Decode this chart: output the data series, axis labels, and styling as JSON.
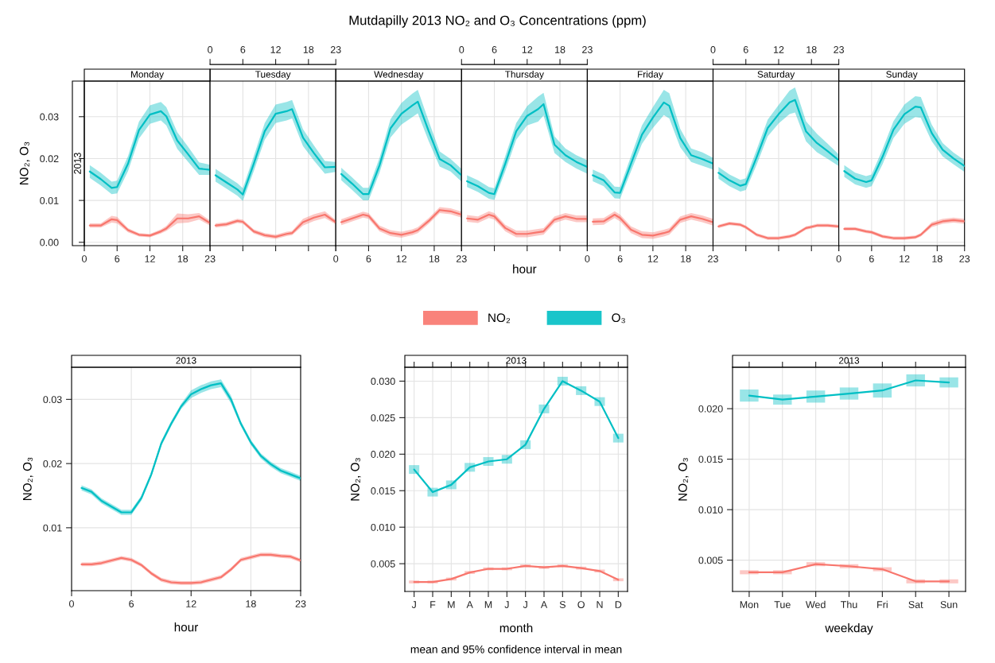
{
  "chart_data": [
    {
      "type": "line",
      "subtitle": "Monday",
      "ylabel": "NO₂, O₃",
      "annotations": [
        "2013"
      ],
      "x": [
        1,
        3,
        5,
        6,
        8,
        10,
        12,
        14,
        15,
        17,
        19,
        21,
        23
      ],
      "xlim": [
        0,
        23
      ],
      "xticks": [
        0,
        6,
        12,
        18,
        23
      ],
      "ylim": [
        -0.0008,
        0.0385
      ],
      "yticks": [
        {
          "value": 0,
          "label": "0.00"
        },
        0.01,
        0.02,
        0.03
      ],
      "grid": true,
      "series": [
        {
          "color": "#f8766d",
          "values": [
            0.004,
            0.004,
            0.0055,
            0.0053,
            0.0029,
            0.0018,
            0.0016,
            0.0026,
            0.0033,
            0.0057,
            0.0057,
            0.0062,
            0.0046
          ],
          "lower": [
            0.0035,
            0.0035,
            0.0047,
            0.0045,
            0.0024,
            0.0014,
            0.0012,
            0.0021,
            0.0027,
            0.0045,
            0.0047,
            0.0054,
            0.004
          ],
          "upper": [
            0.0045,
            0.0045,
            0.0063,
            0.0061,
            0.0034,
            0.0022,
            0.002,
            0.0031,
            0.0039,
            0.0069,
            0.0067,
            0.007,
            0.0052
          ]
        },
        {
          "color": "#00bfc4",
          "values": [
            0.0169,
            0.0151,
            0.013,
            0.0132,
            0.0188,
            0.0268,
            0.0305,
            0.0313,
            0.0301,
            0.0243,
            0.021,
            0.0176,
            0.0173
          ],
          "lower": [
            0.0154,
            0.0136,
            0.0115,
            0.0117,
            0.017,
            0.0248,
            0.0283,
            0.0291,
            0.0279,
            0.0223,
            0.0192,
            0.0161,
            0.0161
          ],
          "upper": [
            0.0184,
            0.0166,
            0.0145,
            0.0147,
            0.0206,
            0.0288,
            0.0327,
            0.0335,
            0.0323,
            0.0263,
            0.0228,
            0.0191,
            0.0185
          ]
        }
      ]
    },
    {
      "type": "line",
      "subtitle": "Tuesday",
      "x": [
        1,
        3,
        5,
        6,
        8,
        10,
        12,
        14,
        15,
        17,
        19,
        21,
        23
      ],
      "xlim": [
        0,
        23
      ],
      "xticks": [
        0,
        6,
        12,
        18,
        23
      ],
      "ylim": [
        -0.0008,
        0.0385
      ],
      "yticks": [
        {
          "value": 0,
          "label": null
        },
        {
          "value": 0.01,
          "label": null
        },
        {
          "value": 0.02,
          "label": null
        },
        {
          "value": 0.03,
          "label": null
        }
      ],
      "tick_labels": "x",
      "grid": true,
      "series": [
        {
          "color": "#f8766d",
          "values": [
            0.004,
            0.0043,
            0.0051,
            0.0049,
            0.0026,
            0.0017,
            0.0013,
            0.002,
            0.0022,
            0.0048,
            0.0059,
            0.0066,
            0.0048
          ],
          "lower": [
            0.0035,
            0.0038,
            0.0046,
            0.0044,
            0.0021,
            0.0012,
            0.0008,
            0.0015,
            0.0017,
            0.004,
            0.0051,
            0.0058,
            0.0043
          ],
          "upper": [
            0.0045,
            0.0048,
            0.0056,
            0.0054,
            0.0031,
            0.0022,
            0.0018,
            0.0025,
            0.0027,
            0.0056,
            0.0067,
            0.0074,
            0.0053
          ]
        },
        {
          "color": "#00bfc4",
          "values": [
            0.016,
            0.0143,
            0.0126,
            0.0114,
            0.0188,
            0.0265,
            0.0307,
            0.0313,
            0.0318,
            0.025,
            0.0213,
            0.0179,
            0.018
          ],
          "lower": [
            0.0145,
            0.0128,
            0.0111,
            0.0099,
            0.017,
            0.0245,
            0.0285,
            0.0291,
            0.0296,
            0.023,
            0.0195,
            0.0164,
            0.0168
          ],
          "upper": [
            0.0175,
            0.0158,
            0.0141,
            0.0129,
            0.0206,
            0.0285,
            0.0329,
            0.0335,
            0.034,
            0.027,
            0.0231,
            0.0194,
            0.0192
          ]
        }
      ]
    },
    {
      "type": "line",
      "subtitle": "Wednesday",
      "x": [
        1,
        3,
        5,
        6,
        8,
        10,
        12,
        14,
        15,
        17,
        19,
        21,
        23
      ],
      "xlim": [
        0,
        23
      ],
      "xticks": [
        0,
        6,
        12,
        18,
        23
      ],
      "ylim": [
        -0.0008,
        0.0385
      ],
      "yticks": [
        {
          "value": 0,
          "label": null
        },
        {
          "value": 0.01,
          "label": null
        },
        {
          "value": 0.02,
          "label": null
        },
        {
          "value": 0.03,
          "label": null
        }
      ],
      "tick_labels": "x",
      "grid": true,
      "series": [
        {
          "color": "#f8766d",
          "values": [
            0.0048,
            0.0057,
            0.0066,
            0.0063,
            0.0033,
            0.0022,
            0.0018,
            0.0024,
            0.0029,
            0.0051,
            0.0077,
            0.0074,
            0.0066
          ],
          "lower": [
            0.0041,
            0.005,
            0.0059,
            0.0056,
            0.0026,
            0.0015,
            0.0011,
            0.0017,
            0.0022,
            0.0044,
            0.007,
            0.0067,
            0.0059
          ],
          "upper": [
            0.0055,
            0.0064,
            0.0073,
            0.007,
            0.004,
            0.0029,
            0.0025,
            0.0031,
            0.0036,
            0.0058,
            0.0084,
            0.0081,
            0.0073
          ]
        },
        {
          "color": "#00bfc4",
          "values": [
            0.0163,
            0.014,
            0.0115,
            0.0115,
            0.0184,
            0.0272,
            0.0307,
            0.0327,
            0.0336,
            0.0265,
            0.0199,
            0.0184,
            0.016
          ],
          "lower": [
            0.0148,
            0.0125,
            0.01,
            0.01,
            0.0166,
            0.025,
            0.0281,
            0.0299,
            0.0308,
            0.0241,
            0.0181,
            0.0169,
            0.0145
          ],
          "upper": [
            0.0178,
            0.0155,
            0.013,
            0.013,
            0.0202,
            0.0294,
            0.0333,
            0.0355,
            0.0364,
            0.0289,
            0.0217,
            0.0199,
            0.0175
          ]
        }
      ]
    },
    {
      "type": "line",
      "subtitle": "Thursday",
      "xlabel": "hour",
      "annotations": [
        "Mutdapilly 2013 NO₂ and O₃ Concentrations (ppm)"
      ],
      "legend": "bottom",
      "x": [
        1,
        3,
        5,
        6,
        8,
        10,
        12,
        14,
        15,
        17,
        19,
        21,
        23
      ],
      "xlim": [
        0,
        23
      ],
      "xticks": [
        0,
        6,
        12,
        18,
        23
      ],
      "ylim": [
        -0.0008,
        0.0385
      ],
      "yticks": [
        {
          "value": 0,
          "label": null
        },
        {
          "value": 0.01,
          "label": null
        },
        {
          "value": 0.02,
          "label": null
        },
        {
          "value": 0.03,
          "label": null
        }
      ],
      "tick_labels": "x",
      "grid": true,
      "series": [
        {
          "name": "NO₂",
          "color": "#f8766d",
          "values": [
            0.0057,
            0.0054,
            0.0066,
            0.0062,
            0.0034,
            0.002,
            0.002,
            0.0024,
            0.0026,
            0.0054,
            0.0062,
            0.0056,
            0.0056
          ],
          "lower": [
            0.0049,
            0.0046,
            0.0058,
            0.0054,
            0.0026,
            0.0012,
            0.0012,
            0.0016,
            0.0018,
            0.0046,
            0.0054,
            0.0048,
            0.0048
          ],
          "upper": [
            0.0065,
            0.0062,
            0.0074,
            0.007,
            0.0042,
            0.0028,
            0.0028,
            0.0032,
            0.0034,
            0.0062,
            0.007,
            0.0064,
            0.0064
          ]
        },
        {
          "name": "O₃",
          "color": "#00bfc4",
          "values": [
            0.0146,
            0.0134,
            0.0118,
            0.0115,
            0.0188,
            0.0265,
            0.0302,
            0.0318,
            0.033,
            0.0233,
            0.0208,
            0.0192,
            0.018
          ],
          "lower": [
            0.0132,
            0.012,
            0.0104,
            0.0101,
            0.017,
            0.0245,
            0.0279,
            0.0288,
            0.0303,
            0.0213,
            0.0192,
            0.0176,
            0.0164
          ],
          "upper": [
            0.016,
            0.0148,
            0.0132,
            0.0129,
            0.0206,
            0.0285,
            0.0325,
            0.0348,
            0.0357,
            0.0253,
            0.0224,
            0.0208,
            0.0196
          ]
        }
      ]
    },
    {
      "type": "line",
      "subtitle": "Friday",
      "x": [
        1,
        3,
        5,
        6,
        8,
        10,
        12,
        14,
        15,
        17,
        19,
        21,
        23
      ],
      "xlim": [
        0,
        23
      ],
      "xticks": [
        0,
        6,
        12,
        18,
        23
      ],
      "ylim": [
        -0.0008,
        0.0385
      ],
      "yticks": [
        {
          "value": 0,
          "label": null
        },
        {
          "value": 0.01,
          "label": null
        },
        {
          "value": 0.02,
          "label": null
        },
        {
          "value": 0.03,
          "label": null
        }
      ],
      "tick_labels": "x",
      "grid": true,
      "series": [
        {
          "color": "#f8766d",
          "values": [
            0.0049,
            0.005,
            0.0066,
            0.0058,
            0.003,
            0.0018,
            0.0016,
            0.0022,
            0.0026,
            0.0054,
            0.0062,
            0.0056,
            0.0048
          ],
          "lower": [
            0.0041,
            0.0042,
            0.0058,
            0.005,
            0.0022,
            0.001,
            0.0008,
            0.0014,
            0.0018,
            0.0046,
            0.0054,
            0.0048,
            0.004
          ],
          "upper": [
            0.0057,
            0.0058,
            0.0074,
            0.0066,
            0.0038,
            0.0026,
            0.0024,
            0.003,
            0.0034,
            0.0062,
            0.007,
            0.0064,
            0.0056
          ]
        },
        {
          "color": "#00bfc4",
          "values": [
            0.016,
            0.0148,
            0.0119,
            0.0118,
            0.0188,
            0.0257,
            0.0298,
            0.0334,
            0.0326,
            0.0249,
            0.0208,
            0.0199,
            0.0188
          ],
          "lower": [
            0.0146,
            0.0134,
            0.0105,
            0.0104,
            0.017,
            0.0235,
            0.0273,
            0.0304,
            0.0296,
            0.0227,
            0.0192,
            0.0183,
            0.0174
          ],
          "upper": [
            0.0174,
            0.0162,
            0.0133,
            0.0132,
            0.0206,
            0.0279,
            0.0323,
            0.0364,
            0.0356,
            0.0271,
            0.0224,
            0.0215,
            0.0202
          ]
        }
      ]
    },
    {
      "type": "line",
      "subtitle": "Saturday",
      "x": [
        1,
        3,
        5,
        6,
        8,
        10,
        12,
        14,
        15,
        17,
        19,
        21,
        23
      ],
      "xlim": [
        0,
        23
      ],
      "xticks": [
        0,
        6,
        12,
        18,
        23
      ],
      "ylim": [
        -0.0008,
        0.0385
      ],
      "yticks": [
        {
          "value": 0,
          "label": null
        },
        {
          "value": 0.01,
          "label": null
        },
        {
          "value": 0.02,
          "label": null
        },
        {
          "value": 0.03,
          "label": null
        }
      ],
      "tick_labels": "x",
      "grid": true,
      "series": [
        {
          "color": "#f8766d",
          "values": [
            0.0038,
            0.0045,
            0.0042,
            0.0036,
            0.0018,
            0.001,
            0.001,
            0.0014,
            0.0018,
            0.0034,
            0.004,
            0.004,
            0.0038
          ],
          "lower": [
            0.0034,
            0.0041,
            0.0038,
            0.0032,
            0.0014,
            0.0006,
            0.0006,
            0.001,
            0.0014,
            0.003,
            0.0036,
            0.0036,
            0.0034
          ],
          "upper": [
            0.0042,
            0.0049,
            0.0046,
            0.004,
            0.0022,
            0.0014,
            0.0014,
            0.0018,
            0.0022,
            0.0038,
            0.0044,
            0.0044,
            0.0042
          ]
        },
        {
          "color": "#00bfc4",
          "values": [
            0.0166,
            0.0148,
            0.0135,
            0.0139,
            0.0204,
            0.0273,
            0.0306,
            0.0334,
            0.034,
            0.0265,
            0.0237,
            0.0217,
            0.0196
          ],
          "lower": [
            0.0152,
            0.0134,
            0.0121,
            0.0125,
            0.0186,
            0.0253,
            0.0284,
            0.0306,
            0.031,
            0.0241,
            0.0215,
            0.0199,
            0.0182
          ],
          "upper": [
            0.018,
            0.0162,
            0.0149,
            0.0153,
            0.0222,
            0.0293,
            0.0328,
            0.0362,
            0.037,
            0.0289,
            0.0259,
            0.0235,
            0.021
          ]
        }
      ]
    },
    {
      "type": "line",
      "subtitle": "Sunday",
      "x": [
        1,
        3,
        5,
        6,
        8,
        10,
        12,
        14,
        15,
        17,
        19,
        21,
        23
      ],
      "xlim": [
        0,
        23
      ],
      "xticks": [
        0,
        6,
        12,
        18,
        23
      ],
      "ylim": [
        -0.0008,
        0.0385
      ],
      "yticks": [
        {
          "value": 0,
          "label": null
        },
        {
          "value": 0.01,
          "label": null
        },
        {
          "value": 0.02,
          "label": null
        },
        {
          "value": 0.03,
          "label": null
        }
      ],
      "tick_labels": "x",
      "grid": true,
      "series": [
        {
          "color": "#f8766d",
          "values": [
            0.0032,
            0.0032,
            0.0026,
            0.0024,
            0.0014,
            0.001,
            0.001,
            0.0012,
            0.0018,
            0.0042,
            0.005,
            0.0053,
            0.005
          ],
          "lower": [
            0.0028,
            0.0028,
            0.0022,
            0.002,
            0.001,
            0.0006,
            0.0006,
            0.0008,
            0.0014,
            0.0036,
            0.0044,
            0.0047,
            0.0044
          ],
          "upper": [
            0.0036,
            0.0036,
            0.003,
            0.0028,
            0.0018,
            0.0014,
            0.0014,
            0.0016,
            0.0022,
            0.0048,
            0.0056,
            0.0059,
            0.0056
          ]
        },
        {
          "color": "#00bfc4",
          "values": [
            0.017,
            0.0152,
            0.0144,
            0.0148,
            0.0204,
            0.0269,
            0.0306,
            0.0324,
            0.0322,
            0.0261,
            0.0221,
            0.02,
            0.0182
          ],
          "lower": [
            0.0156,
            0.0138,
            0.013,
            0.0134,
            0.0186,
            0.0249,
            0.0283,
            0.0299,
            0.0297,
            0.0241,
            0.0205,
            0.0186,
            0.0168
          ],
          "upper": [
            0.0184,
            0.0166,
            0.0158,
            0.0162,
            0.0222,
            0.0289,
            0.0329,
            0.0349,
            0.0347,
            0.0281,
            0.0237,
            0.0214,
            0.0196
          ]
        }
      ]
    },
    {
      "type": "line",
      "subtitle": "2013",
      "xlabel": "hour",
      "ylabel": "NO₂, O₃",
      "x": [
        1,
        2,
        3,
        4,
        5,
        6,
        7,
        8,
        9,
        10,
        11,
        12,
        13,
        14,
        15,
        16,
        17,
        18,
        19,
        20,
        21,
        22,
        23
      ],
      "xlim": [
        0,
        23
      ],
      "xticks": [
        0,
        6,
        12,
        18,
        23
      ],
      "ylim": [
        0.0002,
        0.035
      ],
      "yticks": [
        0.01,
        0.02,
        0.03
      ],
      "grid": true,
      "series": [
        {
          "color": "#f8766d",
          "values": [
            0.0043,
            0.0043,
            0.0045,
            0.0049,
            0.0053,
            0.005,
            0.0042,
            0.0029,
            0.0019,
            0.0015,
            0.0014,
            0.0014,
            0.0015,
            0.0019,
            0.0023,
            0.0035,
            0.005,
            0.0054,
            0.0058,
            0.0058,
            0.0056,
            0.0055,
            0.0049
          ],
          "lower": [
            0.004,
            0.004,
            0.0042,
            0.0046,
            0.005,
            0.0047,
            0.0039,
            0.0026,
            0.0016,
            0.0012,
            0.0011,
            0.0011,
            0.0012,
            0.0016,
            0.002,
            0.0032,
            0.0047,
            0.0051,
            0.0055,
            0.0055,
            0.0053,
            0.0052,
            0.0046
          ],
          "upper": [
            0.0046,
            0.0046,
            0.0048,
            0.0052,
            0.0056,
            0.0053,
            0.0045,
            0.0032,
            0.0022,
            0.0018,
            0.0017,
            0.0017,
            0.0018,
            0.0022,
            0.0026,
            0.0038,
            0.0053,
            0.0057,
            0.0061,
            0.0061,
            0.0059,
            0.0058,
            0.0052
          ]
        },
        {
          "color": "#00bfc4",
          "values": [
            0.0162,
            0.0156,
            0.0142,
            0.0133,
            0.0124,
            0.0124,
            0.0146,
            0.0183,
            0.0231,
            0.0262,
            0.0289,
            0.0308,
            0.0316,
            0.0322,
            0.0325,
            0.03,
            0.0262,
            0.0233,
            0.0212,
            0.0199,
            0.0189,
            0.0183,
            0.0177
          ],
          "lower": [
            0.0158,
            0.0152,
            0.0138,
            0.0129,
            0.012,
            0.012,
            0.0142,
            0.0179,
            0.0227,
            0.0258,
            0.0285,
            0.0302,
            0.031,
            0.0316,
            0.0319,
            0.0294,
            0.0258,
            0.0229,
            0.0208,
            0.0195,
            0.0185,
            0.0179,
            0.0173
          ],
          "upper": [
            0.0166,
            0.016,
            0.0146,
            0.0137,
            0.0128,
            0.0128,
            0.015,
            0.0187,
            0.0235,
            0.0266,
            0.0293,
            0.0314,
            0.0322,
            0.0328,
            0.0331,
            0.0306,
            0.0266,
            0.0237,
            0.0216,
            0.0203,
            0.0193,
            0.0187,
            0.0181
          ]
        }
      ]
    },
    {
      "type": "line",
      "subtitle": "2013",
      "xlabel": "month",
      "ylabel": "NO₂, O₃",
      "annotations": [
        "mean and 95% confidence interval in mean"
      ],
      "categories": [
        "J",
        "F",
        "M",
        "A",
        "M",
        "J",
        "J",
        "A",
        "S",
        "O",
        "N",
        "D"
      ],
      "ylim": [
        0.0012,
        0.0319
      ],
      "yticks": [
        {
          "value": 0.005,
          "label": "0.005"
        },
        {
          "value": 0.01,
          "label": "0.010"
        },
        {
          "value": 0.015,
          "label": "0.015"
        },
        {
          "value": 0.02,
          "label": "0.020"
        },
        {
          "value": 0.025,
          "label": "0.025"
        },
        {
          "value": 0.03,
          "label": "0.030"
        }
      ],
      "grid": true,
      "series": [
        {
          "color": "#f8766d",
          "values": [
            0.0025,
            0.0025,
            0.0029,
            0.0038,
            0.0043,
            0.0043,
            0.0047,
            0.0045,
            0.0047,
            0.0044,
            0.004,
            0.0028
          ],
          "errors": [
            0.0002,
            0.0002,
            0.0002,
            0.0002,
            0.0002,
            0.0002,
            0.0002,
            0.0002,
            0.0002,
            0.0002,
            0.0002,
            0.0002
          ]
        },
        {
          "color": "#00bfc4",
          "values": [
            0.0179,
            0.0148,
            0.0158,
            0.0182,
            0.019,
            0.0193,
            0.0213,
            0.0262,
            0.03,
            0.0287,
            0.0272,
            0.0222
          ],
          "errors": [
            0.0006,
            0.0006,
            0.0006,
            0.0006,
            0.0006,
            0.0006,
            0.0006,
            0.0006,
            0.0006,
            0.0006,
            0.0006,
            0.0006
          ]
        }
      ]
    },
    {
      "type": "line",
      "subtitle": "2013",
      "xlabel": "weekday",
      "ylabel": "NO₂, O₃",
      "categories": [
        "Mon",
        "Tue",
        "Wed",
        "Thu",
        "Fri",
        "Sat",
        "Sun"
      ],
      "ylim": [
        0.0019,
        0.0241
      ],
      "yticks": [
        {
          "value": 0.005,
          "label": "0.005"
        },
        {
          "value": 0.01,
          "label": "0.010"
        },
        {
          "value": 0.015,
          "label": "0.015"
        },
        {
          "value": 0.02,
          "label": "0.020"
        }
      ],
      "grid": true,
      "series": [
        {
          "color": "#f8766d",
          "values": [
            0.0038,
            0.0038,
            0.0046,
            0.0044,
            0.0041,
            0.0029,
            0.0029
          ],
          "errors": [
            0.0002,
            0.0002,
            0.0002,
            0.0002,
            0.0002,
            0.0002,
            0.0002
          ]
        },
        {
          "color": "#00bfc4",
          "values": [
            0.0213,
            0.0209,
            0.0212,
            0.0215,
            0.0218,
            0.0228,
            0.0226
          ],
          "errors": [
            0.0006,
            0.0005,
            0.0006,
            0.0006,
            0.0007,
            0.0006,
            0.0005
          ]
        }
      ]
    }
  ]
}
